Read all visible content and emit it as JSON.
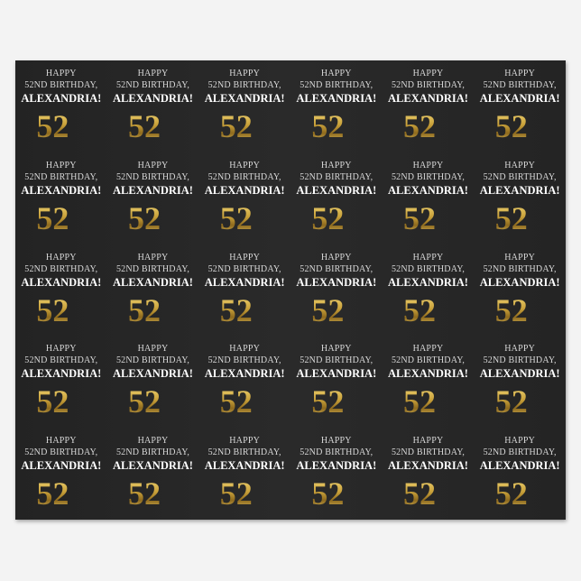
{
  "pattern": {
    "line1": "HAPPY",
    "line2": "52ND BIRTHDAY,",
    "name": "ALEXANDRIA!",
    "number": "52",
    "suffix": "nd",
    "columns": 6,
    "rows": 5
  },
  "colors": {
    "paper": "#262626",
    "gold": "#c9a13a",
    "text": "#ffffff"
  }
}
